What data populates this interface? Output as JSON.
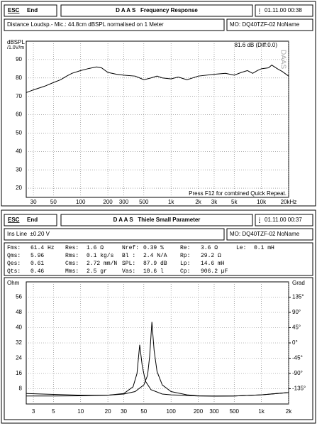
{
  "top": {
    "esc": "ESC",
    "end": "End",
    "title": "D A A S   Frequency Response",
    "info": "i",
    "date": "01.11.00 00:38",
    "subtitle": "Distance Loudsp.- Mic.: 44.8cm dBSPL normalised on 1 Meter",
    "model": "MO: DQ40TZF-02 NoName"
  },
  "bottom": {
    "esc": "ESC",
    "end": "End",
    "title": "D A A S   Thiele Small Parameter",
    "info": "i",
    "date": "01.11.00 00:37",
    "subtitle": "Ins Line  ±0.20 V",
    "model": "MO: DQ40TZF-02 NoName",
    "params": [
      [
        [
          "Fms:",
          "61.4 Hz"
        ],
        [
          "Res:",
          "1.6 Ω"
        ],
        [
          "Nref:",
          "0.39 %"
        ],
        [
          "Re:",
          "3.6 Ω"
        ],
        [
          "Le:",
          "0.1 mH"
        ]
      ],
      [
        [
          "Qms:",
          "5.96"
        ],
        [
          "Rms:",
          "0.1 kg/s"
        ],
        [
          "Bl :",
          "2.4 N/A"
        ],
        [
          "Rp:",
          "29.2 Ω"
        ]
      ],
      [
        [
          "Qes:",
          "0.61"
        ],
        [
          "Cms:",
          "2.72 mm/N"
        ],
        [
          "SPL:",
          "87.9 dB"
        ],
        [
          "Lp:",
          "14.6 mH"
        ]
      ],
      [
        [
          "Qts:",
          "0.46"
        ],
        [
          "Mms:",
          "2.5 gr"
        ],
        [
          "Vas:",
          "10.6 l"
        ],
        [
          "Cp:",
          "906.2 µF"
        ]
      ]
    ]
  },
  "chart_data": [
    {
      "type": "line",
      "x_scale": "log",
      "ylabel": "dBSPL",
      "ylabel_unit": "/1.0V/m",
      "watermark": "DAAS",
      "annotations": [
        "81.6 dB (Diff:0.0)",
        "Press F12 for combined Quick Repeat."
      ],
      "xlim": [
        25,
        20000
      ],
      "ylim": [
        15,
        100
      ],
      "grid": true,
      "xticks": [
        30,
        50,
        100,
        200,
        300,
        500,
        {
          "value": 1000,
          "label": "1k"
        },
        {
          "value": 2000,
          "label": "2k"
        },
        {
          "value": 3000,
          "label": "3k"
        },
        {
          "value": 5000,
          "label": "5k"
        },
        {
          "value": 10000,
          "label": "10k"
        },
        {
          "value": 20000,
          "label": "20kHz"
        }
      ],
      "yticks": [
        20,
        30,
        40,
        50,
        60,
        70,
        80,
        90
      ],
      "series": [
        {
          "color": "#000000",
          "x": [
            25,
            30,
            40,
            50,
            60,
            70,
            80,
            100,
            120,
            150,
            170,
            200,
            250,
            300,
            400,
            450,
            500,
            600,
            700,
            800,
            1000,
            1200,
            1500,
            2000,
            3000,
            4000,
            5000,
            6000,
            7000,
            8000,
            9000,
            10000,
            12000,
            13000,
            15000,
            17000,
            20000
          ],
          "values": [
            72,
            73.5,
            75.5,
            77.5,
            79,
            81,
            82.5,
            84,
            85,
            86,
            85.5,
            83,
            82,
            81.5,
            81,
            80,
            79,
            80,
            81,
            80,
            79.5,
            80.5,
            79,
            81,
            82,
            82.5,
            81.5,
            83,
            84,
            82.5,
            84,
            85,
            85.5,
            87,
            85,
            83.5,
            81
          ]
        }
      ]
    },
    {
      "type": "line",
      "x_scale": "log",
      "ylabel": "Ohm",
      "y2label": "Grad",
      "xlim": [
        2.5,
        2000
      ],
      "ylim": [
        0,
        64
      ],
      "y2lim": [
        -180,
        180
      ],
      "grid": true,
      "xticks": [
        3,
        5,
        10,
        20,
        30,
        50,
        100,
        200,
        300,
        500,
        {
          "value": 1000,
          "label": "1k"
        },
        {
          "value": 2000,
          "label": "2k"
        }
      ],
      "yticks": [
        8,
        16,
        24,
        32,
        40,
        48,
        56
      ],
      "y2ticks": [
        {
          "value": 135,
          "label": "135°"
        },
        {
          "value": 90,
          "label": "90°"
        },
        {
          "value": 45,
          "label": "45°"
        },
        {
          "value": 0,
          "label": "0°"
        },
        {
          "value": -45,
          "label": "-45°"
        },
        {
          "value": -90,
          "label": "-90°"
        },
        {
          "value": -135,
          "label": "-135°"
        }
      ],
      "series": [
        {
          "color": "#000000",
          "x": [
            2.5,
            5,
            10,
            20,
            30,
            40,
            50,
            55,
            58,
            61.4,
            65,
            70,
            80,
            100,
            150,
            200,
            300,
            500,
            1000,
            2000
          ],
          "values": [
            4.2,
            4.2,
            4.3,
            4.6,
            5.2,
            6.5,
            10,
            15,
            25,
            43,
            28,
            17,
            10,
            6.5,
            4.8,
            4.3,
            4.1,
            4.2,
            4.8,
            6.0
          ]
        },
        {
          "color": "#000000",
          "x": [
            2.5,
            5,
            10,
            20,
            30,
            38,
            42,
            45,
            48,
            52,
            60,
            80,
            100,
            200,
            500,
            1000,
            2000
          ],
          "values": [
            5.5,
            5.0,
            4.6,
            4.6,
            5.5,
            9,
            16,
            31,
            20,
            12,
            7.5,
            5.2,
            4.8,
            4.2,
            4.2,
            4.8,
            6.0
          ]
        }
      ]
    }
  ]
}
